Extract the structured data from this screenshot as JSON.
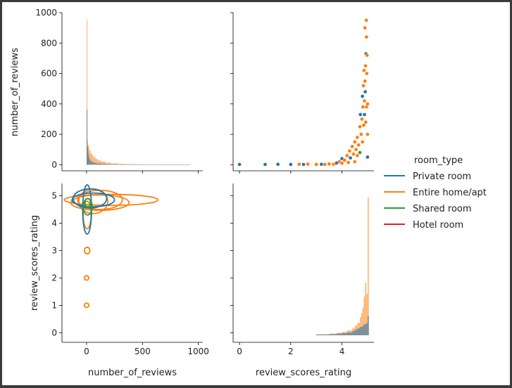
{
  "chart_data": {
    "type": "pairplot",
    "variables": [
      "number_of_reviews",
      "review_scores_rating"
    ],
    "hue": "room_type",
    "legend": {
      "title": "room_type",
      "placement": "right",
      "entries": [
        {
          "name": "Private room",
          "color": "#1f77b4"
        },
        {
          "name": "Entire home/apt",
          "color": "#ff7f0e"
        },
        {
          "name": "Shared room",
          "color": "#2ca02c"
        },
        {
          "name": "Hotel room",
          "color": "#d62728"
        }
      ]
    },
    "axes": {
      "number_of_reviews": {
        "label": "number_of_reviews",
        "range": [
          -220,
          1040
        ],
        "ticks": [
          0,
          500,
          1000
        ],
        "tick_labels": [
          "0",
          "500",
          "1000"
        ],
        "y_range": [
          -40,
          1000
        ],
        "y_ticks": [
          0,
          200,
          400,
          600,
          800,
          1000
        ],
        "y_tick_labels": [
          "0",
          "200",
          "400",
          "600",
          "800",
          "1000"
        ]
      },
      "review_scores_rating": {
        "label": "review_scores_rating",
        "range": [
          -0.25,
          5.25
        ],
        "ticks": [
          0,
          2,
          4
        ],
        "tick_labels": [
          "0",
          "2",
          "4"
        ],
        "y_range": [
          -0.35,
          5.45
        ],
        "y_ticks": [
          0,
          1,
          2,
          3,
          4,
          5
        ],
        "y_tick_labels": [
          "0",
          "1",
          "2",
          "3",
          "4",
          "5"
        ]
      }
    },
    "panels": [
      {
        "position": "top-left",
        "kind": "histogram",
        "variable": "number_of_reviews",
        "bins": [
          {
            "x": 0,
            "values": {
              "Private room": 360,
              "Entire home/apt": 950
            }
          },
          {
            "x": 6,
            "values": {
              "Private room": 120,
              "Entire home/apt": 160
            }
          },
          {
            "x": 12,
            "values": {
              "Private room": 75,
              "Entire home/apt": 130
            }
          },
          {
            "x": 18,
            "values": {
              "Private room": 50,
              "Entire home/apt": 110
            }
          },
          {
            "x": 25,
            "values": {
              "Private room": 35,
              "Entire home/apt": 95
            }
          },
          {
            "x": 35,
            "values": {
              "Private room": 25,
              "Entire home/apt": 78
            }
          },
          {
            "x": 45,
            "values": {
              "Private room": 18,
              "Entire home/apt": 65
            }
          },
          {
            "x": 60,
            "values": {
              "Private room": 14,
              "Entire home/apt": 50
            }
          },
          {
            "x": 80,
            "values": {
              "Private room": 10,
              "Entire home/apt": 38
            }
          },
          {
            "x": 100,
            "values": {
              "Private room": 8,
              "Entire home/apt": 28
            }
          },
          {
            "x": 130,
            "values": {
              "Private room": 6,
              "Entire home/apt": 20
            }
          },
          {
            "x": 170,
            "values": {
              "Private room": 4,
              "Entire home/apt": 13
            }
          },
          {
            "x": 220,
            "values": {
              "Private room": 3,
              "Entire home/apt": 9
            }
          },
          {
            "x": 280,
            "values": {
              "Private room": 2,
              "Entire home/apt": 6
            }
          },
          {
            "x": 350,
            "values": {
              "Private room": 2,
              "Entire home/apt": 4
            }
          },
          {
            "x": 450,
            "values": {
              "Private room": 1,
              "Entire home/apt": 3
            }
          },
          {
            "x": 560,
            "values": {
              "Private room": 1,
              "Entire home/apt": 2
            }
          },
          {
            "x": 700,
            "values": {
              "Private room": 1,
              "Entire home/apt": 1
            }
          },
          {
            "x": 850,
            "values": {
              "Private room": 1,
              "Entire home/apt": 1
            }
          }
        ]
      },
      {
        "position": "top-right",
        "kind": "scatter",
        "x_variable": "review_scores_rating",
        "y_variable": "number_of_reviews",
        "points": [
          {
            "x": 0,
            "y": 2,
            "series": "Private room"
          },
          {
            "x": 1,
            "y": 2,
            "series": "Private room"
          },
          {
            "x": 1.5,
            "y": 3,
            "series": "Private room"
          },
          {
            "x": 2,
            "y": 2,
            "series": "Private room"
          },
          {
            "x": 2.33,
            "y": 3,
            "series": "Entire home/apt"
          },
          {
            "x": 2.5,
            "y": 2,
            "series": "Private room"
          },
          {
            "x": 2.67,
            "y": 4,
            "series": "Entire home/apt"
          },
          {
            "x": 3,
            "y": 2,
            "series": "Entire home/apt"
          },
          {
            "x": 3.2,
            "y": 3,
            "series": "Private room"
          },
          {
            "x": 3.33,
            "y": 2,
            "series": "Entire home/apt"
          },
          {
            "x": 3.5,
            "y": 5,
            "series": "Entire home/apt"
          },
          {
            "x": 3.67,
            "y": 3,
            "series": "Entire home/apt"
          },
          {
            "x": 3.75,
            "y": 8,
            "series": "Entire home/apt"
          },
          {
            "x": 3.8,
            "y": 12,
            "series": "Private room"
          },
          {
            "x": 3.9,
            "y": 20,
            "series": "Entire home/apt"
          },
          {
            "x": 4.0,
            "y": 10,
            "series": "Entire home/apt"
          },
          {
            "x": 4.0,
            "y": 40,
            "series": "Private room"
          },
          {
            "x": 4.1,
            "y": 30,
            "series": "Entire home/apt"
          },
          {
            "x": 4.2,
            "y": 60,
            "series": "Entire home/apt"
          },
          {
            "x": 4.25,
            "y": 15,
            "series": "Entire home/apt"
          },
          {
            "x": 4.3,
            "y": 90,
            "series": "Entire home/apt"
          },
          {
            "x": 4.33,
            "y": 45,
            "series": "Private room"
          },
          {
            "x": 4.4,
            "y": 120,
            "series": "Entire home/apt"
          },
          {
            "x": 4.45,
            "y": 70,
            "series": "Entire home/apt"
          },
          {
            "x": 4.5,
            "y": 150,
            "series": "Entire home/apt"
          },
          {
            "x": 4.5,
            "y": 20,
            "series": "Entire home/apt"
          },
          {
            "x": 4.55,
            "y": 100,
            "series": "Entire home/apt"
          },
          {
            "x": 4.6,
            "y": 180,
            "series": "Entire home/apt"
          },
          {
            "x": 4.6,
            "y": 60,
            "series": "Entire home/apt"
          },
          {
            "x": 4.65,
            "y": 130,
            "series": "Entire home/apt"
          },
          {
            "x": 4.7,
            "y": 250,
            "series": "Entire home/apt"
          },
          {
            "x": 4.7,
            "y": 80,
            "series": "Shared room"
          },
          {
            "x": 4.72,
            "y": 330,
            "series": "Private room"
          },
          {
            "x": 4.75,
            "y": 200,
            "series": "Entire home/apt"
          },
          {
            "x": 4.78,
            "y": 300,
            "series": "Entire home/apt"
          },
          {
            "x": 4.8,
            "y": 450,
            "series": "Private room"
          },
          {
            "x": 4.8,
            "y": 150,
            "series": "Entire home/apt"
          },
          {
            "x": 4.82,
            "y": 380,
            "series": "Entire home/apt"
          },
          {
            "x": 4.84,
            "y": 520,
            "series": "Entire home/apt"
          },
          {
            "x": 4.85,
            "y": 260,
            "series": "Entire home/apt"
          },
          {
            "x": 4.86,
            "y": 620,
            "series": "Entire home/apt"
          },
          {
            "x": 4.88,
            "y": 420,
            "series": "Entire home/apt"
          },
          {
            "x": 4.88,
            "y": 330,
            "series": "Private room"
          },
          {
            "x": 4.9,
            "y": 900,
            "series": "Entire home/apt"
          },
          {
            "x": 4.9,
            "y": 550,
            "series": "Entire home/apt"
          },
          {
            "x": 4.91,
            "y": 480,
            "series": "Private room"
          },
          {
            "x": 4.92,
            "y": 650,
            "series": "Entire home/apt"
          },
          {
            "x": 4.93,
            "y": 280,
            "series": "Entire home/apt"
          },
          {
            "x": 4.94,
            "y": 730,
            "series": "Private room"
          },
          {
            "x": 4.95,
            "y": 950,
            "series": "Entire home/apt"
          },
          {
            "x": 4.96,
            "y": 840,
            "series": "Entire home/apt"
          },
          {
            "x": 4.96,
            "y": 380,
            "series": "Entire home/apt"
          },
          {
            "x": 4.97,
            "y": 600,
            "series": "Entire home/apt"
          },
          {
            "x": 4.98,
            "y": 720,
            "series": "Entire home/apt"
          },
          {
            "x": 5.0,
            "y": 400,
            "series": "Entire home/apt"
          },
          {
            "x": 5.0,
            "y": 200,
            "series": "Entire home/apt"
          },
          {
            "x": 5.0,
            "y": 50,
            "series": "Private room"
          }
        ]
      },
      {
        "position": "bottom-left",
        "kind": "kde",
        "x_variable": "number_of_reviews",
        "y_variable": "review_scores_rating",
        "contours": [
          {
            "series": "Entire home/apt",
            "cx": 120,
            "cy": 4.85,
            "rx": 200,
            "ry": 0.35
          },
          {
            "series": "Entire home/apt",
            "cx": 220,
            "cy": 4.85,
            "rx": 420,
            "ry": 0.2
          },
          {
            "series": "Entire home/apt",
            "cx": 120,
            "cy": 4.75,
            "rx": 260,
            "ry": 0.28
          },
          {
            "series": "Entire home/apt",
            "cx": 60,
            "cy": 4.8,
            "rx": 130,
            "ry": 0.45
          },
          {
            "series": "Entire home/apt",
            "cx": 5,
            "cy": 4.3,
            "rx": 35,
            "ry": 0.5
          },
          {
            "series": "Entire home/apt",
            "cx": 5,
            "cy": 3.0,
            "rx": 25,
            "ry": 0.12
          },
          {
            "series": "Entire home/apt",
            "cx": 0,
            "cy": 2.0,
            "rx": 20,
            "ry": 0.08
          },
          {
            "series": "Entire home/apt",
            "cx": 0,
            "cy": 1.0,
            "rx": 20,
            "ry": 0.08
          },
          {
            "series": "Private room",
            "cx": 30,
            "cy": 4.9,
            "rx": 150,
            "ry": 0.35
          },
          {
            "series": "Private room",
            "cx": 5,
            "cy": 4.5,
            "rx": 40,
            "ry": 0.9
          },
          {
            "series": "Private room",
            "cx": 60,
            "cy": 4.85,
            "rx": 190,
            "ry": 0.25
          },
          {
            "series": "Shared room",
            "cx": 10,
            "cy": 4.6,
            "rx": 40,
            "ry": 0.3
          },
          {
            "series": "Shared room",
            "cx": 10,
            "cy": 4.75,
            "rx": 25,
            "ry": 0.15
          }
        ]
      },
      {
        "position": "bottom-right",
        "kind": "histogram",
        "variable": "review_scores_rating",
        "bins": [
          {
            "x": 3.0,
            "values": {
              "Private room": 0.5,
              "Entire home/apt": 0.8
            }
          },
          {
            "x": 3.5,
            "values": {
              "Private room": 0.8,
              "Entire home/apt": 1.2
            }
          },
          {
            "x": 3.8,
            "values": {
              "Private room": 1.2,
              "Entire home/apt": 1.8
            }
          },
          {
            "x": 4.0,
            "values": {
              "Private room": 1.5,
              "Entire home/apt": 2.5
            }
          },
          {
            "x": 4.2,
            "values": {
              "Private room": 2,
              "Entire home/apt": 3.5
            }
          },
          {
            "x": 4.4,
            "values": {
              "Private room": 3,
              "Entire home/apt": 5
            }
          },
          {
            "x": 4.5,
            "values": {
              "Private room": 4,
              "Entire home/apt": 7
            }
          },
          {
            "x": 4.6,
            "values": {
              "Private room": 5,
              "Entire home/apt": 9
            }
          },
          {
            "x": 4.7,
            "values": {
              "Private room": 6,
              "Entire home/apt": 13
            }
          },
          {
            "x": 4.75,
            "values": {
              "Private room": 6,
              "Entire home/apt": 16
            }
          },
          {
            "x": 4.8,
            "values": {
              "Private room": 7,
              "Entire home/apt": 20
            }
          },
          {
            "x": 4.85,
            "values": {
              "Private room": 8,
              "Entire home/apt": 28
            }
          },
          {
            "x": 4.9,
            "values": {
              "Private room": 8,
              "Entire home/apt": 38
            }
          },
          {
            "x": 4.95,
            "values": {
              "Private room": 9,
              "Entire home/apt": 30
            }
          },
          {
            "x": 5.0,
            "values": {
              "Private room": 14,
              "Entire home/apt": 100
            }
          }
        ]
      }
    ]
  }
}
